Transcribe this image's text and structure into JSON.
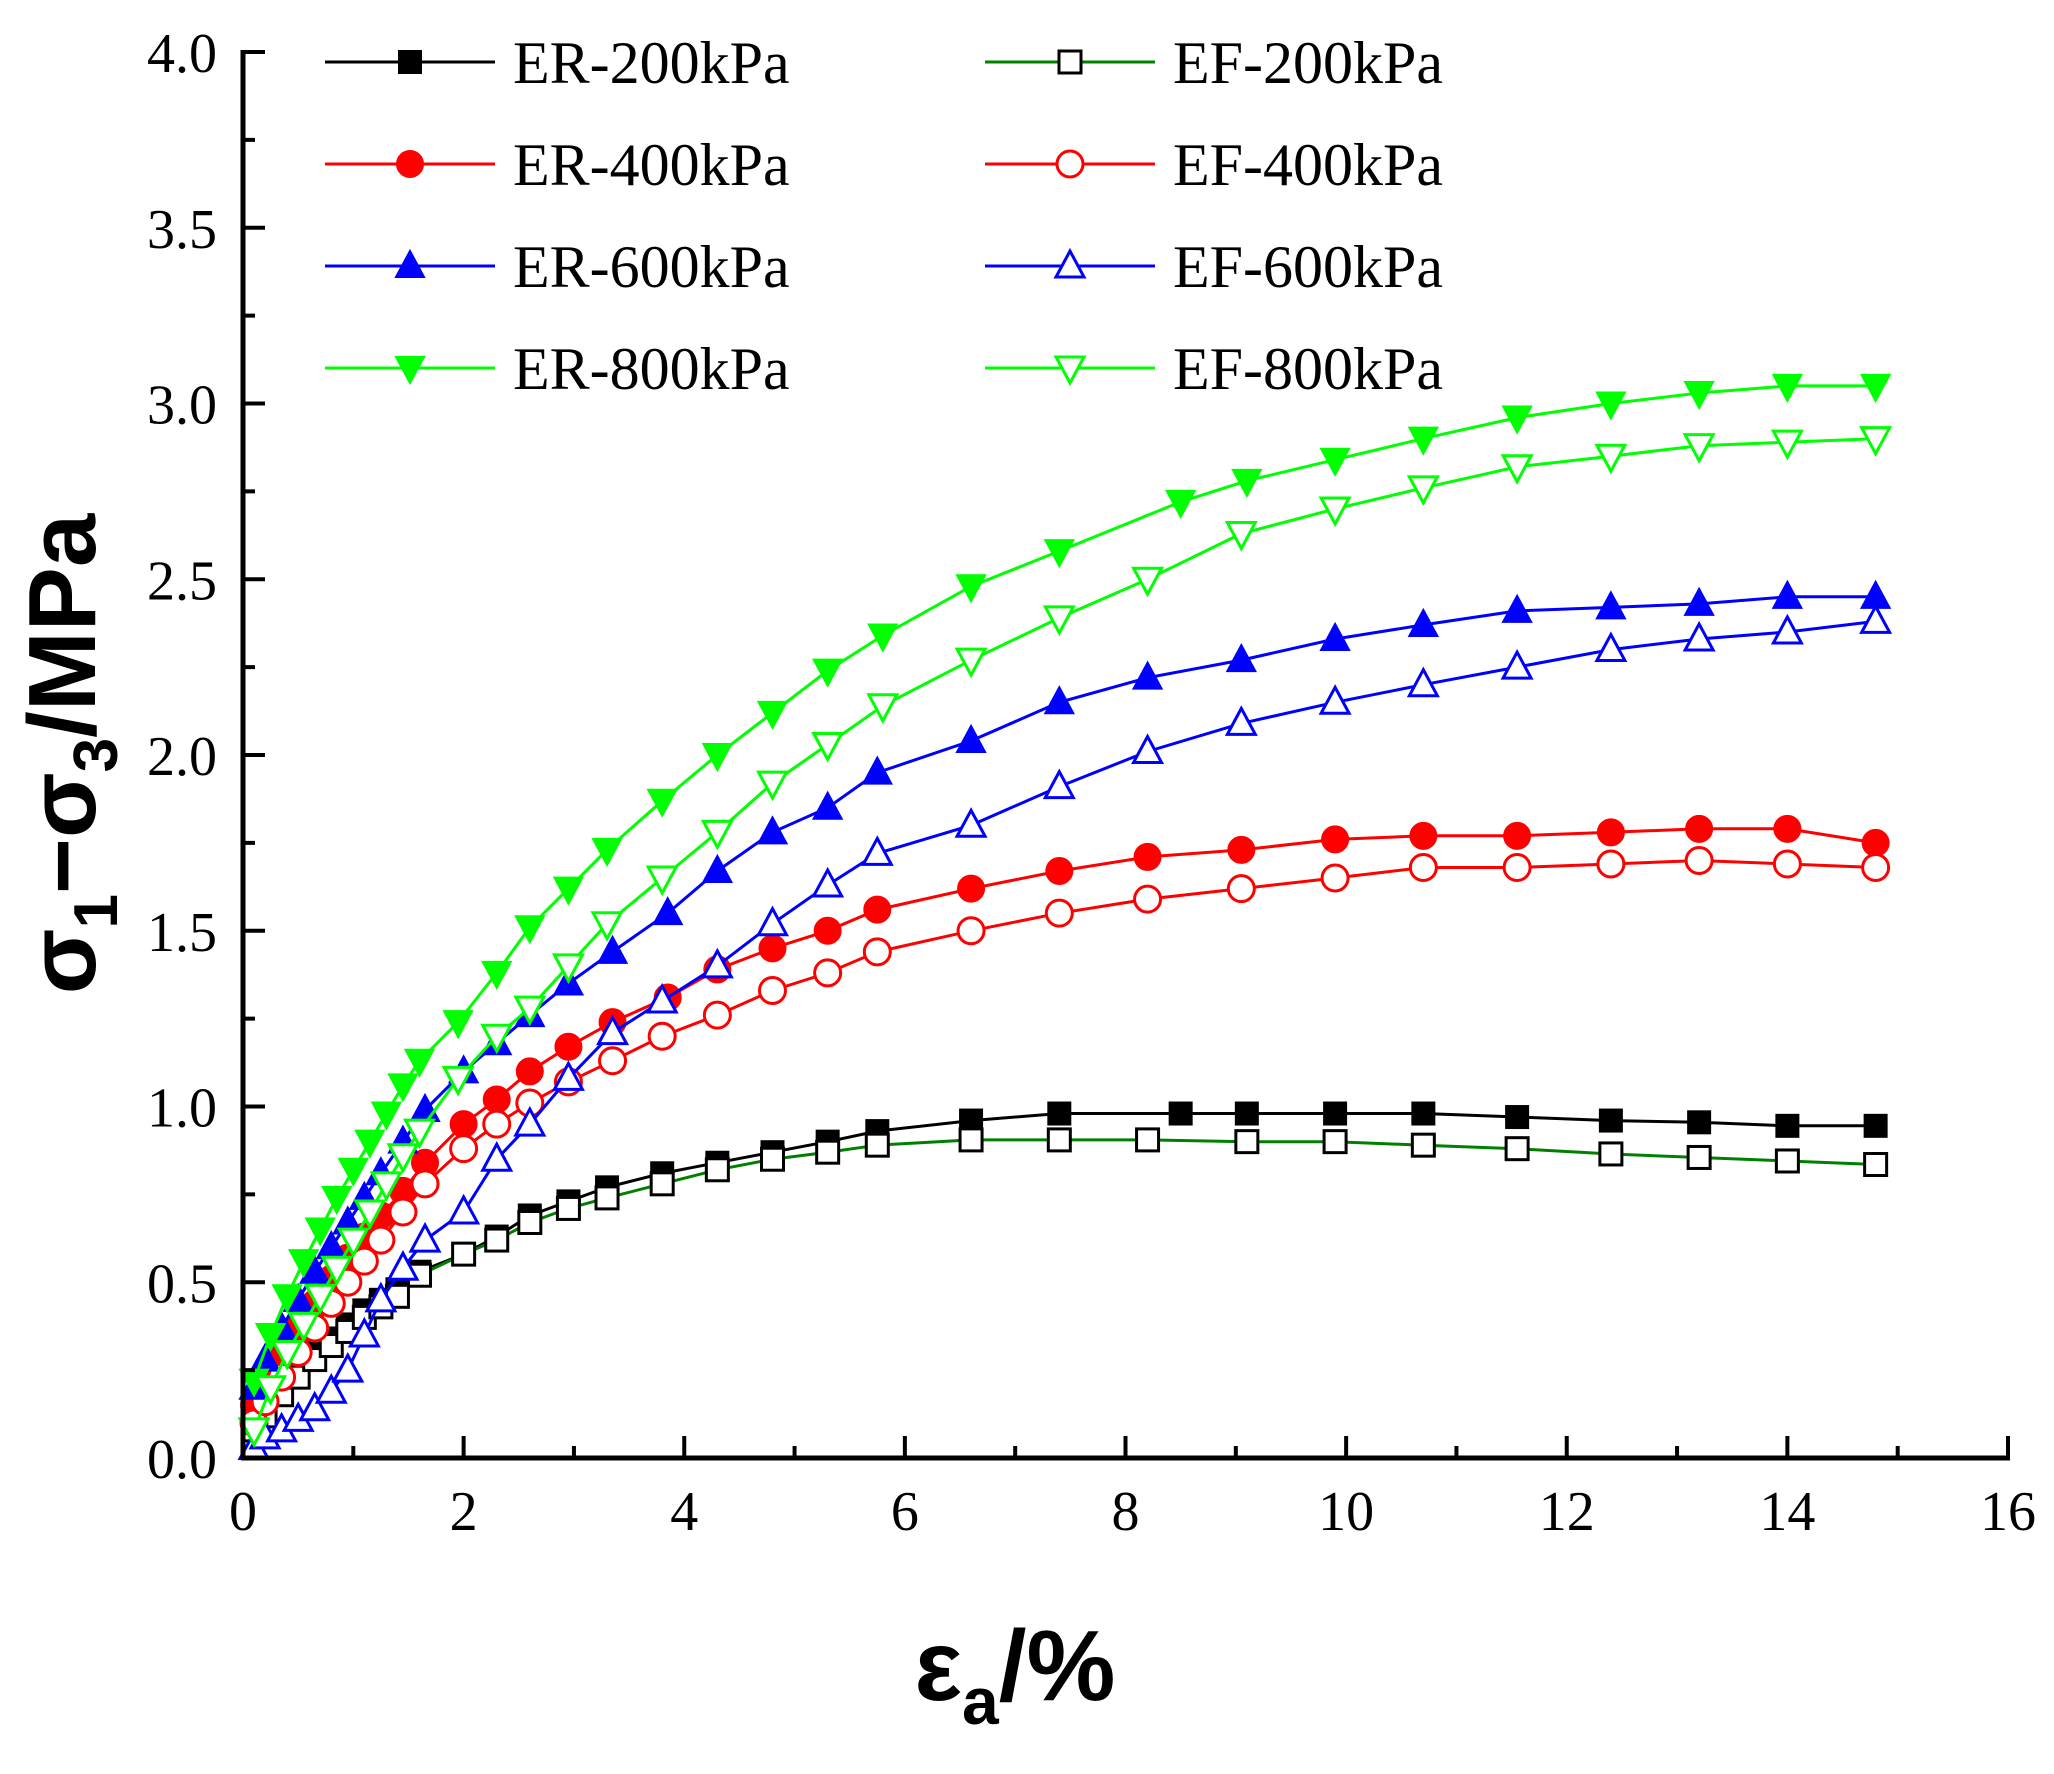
{
  "chart_data": {
    "type": "line",
    "title": "",
    "xlabel": {
      "main": "ε",
      "sub": "a",
      "suffix": "/%"
    },
    "ylabel": {
      "s1": "σ",
      "sub1": "1",
      "dash": "−",
      "s2": "σ",
      "sub2": "3",
      "suffix": "/MPa"
    },
    "xlim": [
      0,
      16
    ],
    "ylim": [
      0,
      4
    ],
    "xticks": [
      0,
      2,
      4,
      6,
      8,
      10,
      12,
      14,
      16
    ],
    "yticks": [
      0.0,
      0.5,
      1.0,
      1.5,
      2.0,
      2.5,
      3.0,
      3.5,
      4.0
    ],
    "xtick_labels": [
      "0",
      "2",
      "4",
      "6",
      "8",
      "10",
      "12",
      "14",
      "16"
    ],
    "ytick_labels": [
      "0.0",
      "0.5",
      "1.0",
      "1.5",
      "2.0",
      "2.5",
      "3.0",
      "3.5",
      "4.0"
    ],
    "grid": false,
    "legend_position": "top-left, two columns",
    "series": [
      {
        "name": "ER-200kPa",
        "color": "#000000",
        "line_color": "#000000",
        "marker": "square",
        "filled": true,
        "x": [
          0.1,
          0.2,
          0.35,
          0.5,
          0.65,
          0.8,
          0.95,
          1.1,
          1.25,
          1.4,
          1.6,
          2.0,
          2.3,
          2.6,
          2.95,
          3.3,
          3.8,
          4.3,
          4.8,
          5.3,
          5.75,
          6.6,
          7.4,
          8.5,
          9.1,
          9.9,
          10.7,
          11.55,
          12.4,
          13.2,
          14.0,
          14.8
        ],
        "y": [
          0.1,
          0.15,
          0.2,
          0.25,
          0.3,
          0.34,
          0.38,
          0.42,
          0.45,
          0.48,
          0.53,
          0.58,
          0.63,
          0.69,
          0.73,
          0.77,
          0.81,
          0.84,
          0.87,
          0.9,
          0.93,
          0.96,
          0.98,
          0.98,
          0.98,
          0.98,
          0.98,
          0.97,
          0.96,
          0.955,
          0.945,
          0.945
        ]
      },
      {
        "name": "EF-200kPa",
        "color": "#000000",
        "line_color": "#008000",
        "marker": "square",
        "filled": false,
        "x": [
          0.1,
          0.2,
          0.35,
          0.5,
          0.65,
          0.8,
          0.95,
          1.1,
          1.25,
          1.4,
          1.6,
          2.0,
          2.3,
          2.6,
          2.95,
          3.3,
          3.8,
          4.3,
          4.8,
          5.3,
          5.75,
          6.6,
          7.4,
          8.2,
          9.1,
          9.9,
          10.7,
          11.55,
          12.4,
          13.2,
          14.0,
          14.8
        ],
        "y": [
          0.08,
          0.12,
          0.18,
          0.23,
          0.28,
          0.32,
          0.36,
          0.4,
          0.43,
          0.46,
          0.52,
          0.58,
          0.62,
          0.67,
          0.71,
          0.74,
          0.78,
          0.82,
          0.85,
          0.87,
          0.89,
          0.905,
          0.905,
          0.905,
          0.9,
          0.9,
          0.89,
          0.88,
          0.865,
          0.855,
          0.845,
          0.835
        ]
      },
      {
        "name": "ER-400kPa",
        "color": "#ff0000",
        "line_color": "#ff0000",
        "marker": "circle",
        "filled": true,
        "x": [
          0.1,
          0.2,
          0.35,
          0.5,
          0.65,
          0.8,
          0.95,
          1.1,
          1.25,
          1.45,
          1.65,
          2.0,
          2.3,
          2.6,
          2.95,
          3.35,
          3.85,
          4.3,
          4.8,
          5.3,
          5.75,
          6.6,
          7.4,
          8.2,
          9.05,
          9.9,
          10.7,
          11.55,
          12.4,
          13.2,
          14.0,
          14.8
        ],
        "y": [
          0.15,
          0.22,
          0.3,
          0.37,
          0.44,
          0.51,
          0.57,
          0.63,
          0.69,
          0.76,
          0.84,
          0.95,
          1.02,
          1.1,
          1.17,
          1.24,
          1.31,
          1.39,
          1.45,
          1.5,
          1.56,
          1.62,
          1.67,
          1.71,
          1.73,
          1.76,
          1.77,
          1.77,
          1.78,
          1.79,
          1.79,
          1.75
        ]
      },
      {
        "name": "EF-400kPa",
        "color": "#ff0000",
        "line_color": "#ff0000",
        "marker": "circle",
        "filled": false,
        "x": [
          0.1,
          0.2,
          0.35,
          0.5,
          0.65,
          0.8,
          0.95,
          1.1,
          1.25,
          1.45,
          1.65,
          2.0,
          2.3,
          2.6,
          2.95,
          3.35,
          3.8,
          4.3,
          4.8,
          5.3,
          5.75,
          6.6,
          7.4,
          8.2,
          9.05,
          9.9,
          10.7,
          11.55,
          12.4,
          13.2,
          14.0,
          14.8
        ],
        "y": [
          0.1,
          0.16,
          0.23,
          0.3,
          0.37,
          0.44,
          0.5,
          0.56,
          0.62,
          0.7,
          0.78,
          0.88,
          0.95,
          1.01,
          1.07,
          1.13,
          1.2,
          1.26,
          1.33,
          1.38,
          1.44,
          1.5,
          1.55,
          1.59,
          1.62,
          1.65,
          1.68,
          1.68,
          1.69,
          1.7,
          1.69,
          1.68
        ]
      },
      {
        "name": "ER-600kPa",
        "color": "#0000ff",
        "line_color": "#0000ff",
        "marker": "triangle-up",
        "filled": true,
        "x": [
          0.1,
          0.2,
          0.35,
          0.5,
          0.65,
          0.8,
          0.95,
          1.1,
          1.25,
          1.45,
          1.65,
          2.0,
          2.3,
          2.6,
          2.95,
          3.35,
          3.85,
          4.3,
          4.8,
          5.3,
          5.75,
          6.6,
          7.4,
          8.2,
          9.05,
          9.9,
          10.7,
          11.55,
          12.4,
          13.2,
          14.0,
          14.8
        ],
        "y": [
          0.2,
          0.28,
          0.37,
          0.45,
          0.53,
          0.6,
          0.67,
          0.74,
          0.81,
          0.9,
          0.99,
          1.1,
          1.18,
          1.26,
          1.35,
          1.44,
          1.55,
          1.67,
          1.78,
          1.85,
          1.95,
          2.04,
          2.15,
          2.22,
          2.27,
          2.33,
          2.37,
          2.41,
          2.42,
          2.43,
          2.45,
          2.45
        ]
      },
      {
        "name": "EF-600kPa",
        "color": "#0000ff",
        "line_color": "#0000ff",
        "marker": "triangle-up",
        "filled": false,
        "x": [
          0.1,
          0.2,
          0.35,
          0.5,
          0.65,
          0.8,
          0.95,
          1.1,
          1.25,
          1.45,
          1.65,
          2.0,
          2.3,
          2.6,
          2.95,
          3.35,
          3.8,
          4.3,
          4.8,
          5.3,
          5.75,
          6.6,
          7.4,
          8.2,
          9.05,
          9.9,
          10.7,
          11.55,
          12.4,
          13.2,
          14.0,
          14.8
        ],
        "y": [
          0.03,
          0.06,
          0.08,
          0.11,
          0.14,
          0.19,
          0.25,
          0.35,
          0.45,
          0.54,
          0.62,
          0.7,
          0.85,
          0.95,
          1.08,
          1.21,
          1.3,
          1.4,
          1.52,
          1.63,
          1.72,
          1.8,
          1.91,
          2.01,
          2.09,
          2.15,
          2.2,
          2.25,
          2.3,
          2.33,
          2.35,
          2.38
        ]
      },
      {
        "name": "ER-800kPa",
        "color": "#00ff00",
        "line_color": "#00ff00",
        "marker": "triangle-down",
        "filled": true,
        "x": [
          0.1,
          0.25,
          0.4,
          0.55,
          0.7,
          0.85,
          1.0,
          1.15,
          1.3,
          1.45,
          1.6,
          1.95,
          2.3,
          2.6,
          2.95,
          3.3,
          3.8,
          4.3,
          4.8,
          5.3,
          5.8,
          6.6,
          7.4,
          8.5,
          9.1,
          9.9,
          10.7,
          11.55,
          12.4,
          13.2,
          14.0,
          14.8
        ],
        "y": [
          0.22,
          0.35,
          0.46,
          0.56,
          0.65,
          0.74,
          0.82,
          0.9,
          0.98,
          1.06,
          1.13,
          1.24,
          1.38,
          1.51,
          1.62,
          1.73,
          1.87,
          2.0,
          2.12,
          2.24,
          2.34,
          2.48,
          2.58,
          2.72,
          2.78,
          2.84,
          2.9,
          2.96,
          3.0,
          3.03,
          3.05,
          3.05
        ]
      },
      {
        "name": "EF-800kPa",
        "color": "#00ff00",
        "line_color": "#00ff00",
        "marker": "triangle-down",
        "filled": false,
        "x": [
          0.1,
          0.25,
          0.4,
          0.55,
          0.7,
          0.85,
          1.0,
          1.15,
          1.3,
          1.45,
          1.6,
          1.95,
          2.3,
          2.6,
          2.95,
          3.3,
          3.8,
          4.3,
          4.8,
          5.3,
          5.8,
          6.6,
          7.4,
          8.2,
          9.05,
          9.9,
          10.7,
          11.55,
          12.4,
          13.2,
          14.0,
          14.8
        ],
        "y": [
          0.08,
          0.2,
          0.3,
          0.38,
          0.46,
          0.54,
          0.62,
          0.7,
          0.78,
          0.86,
          0.93,
          1.08,
          1.2,
          1.28,
          1.4,
          1.52,
          1.65,
          1.78,
          1.92,
          2.03,
          2.14,
          2.27,
          2.39,
          2.5,
          2.63,
          2.7,
          2.76,
          2.82,
          2.85,
          2.88,
          2.89,
          2.9
        ]
      }
    ]
  }
}
